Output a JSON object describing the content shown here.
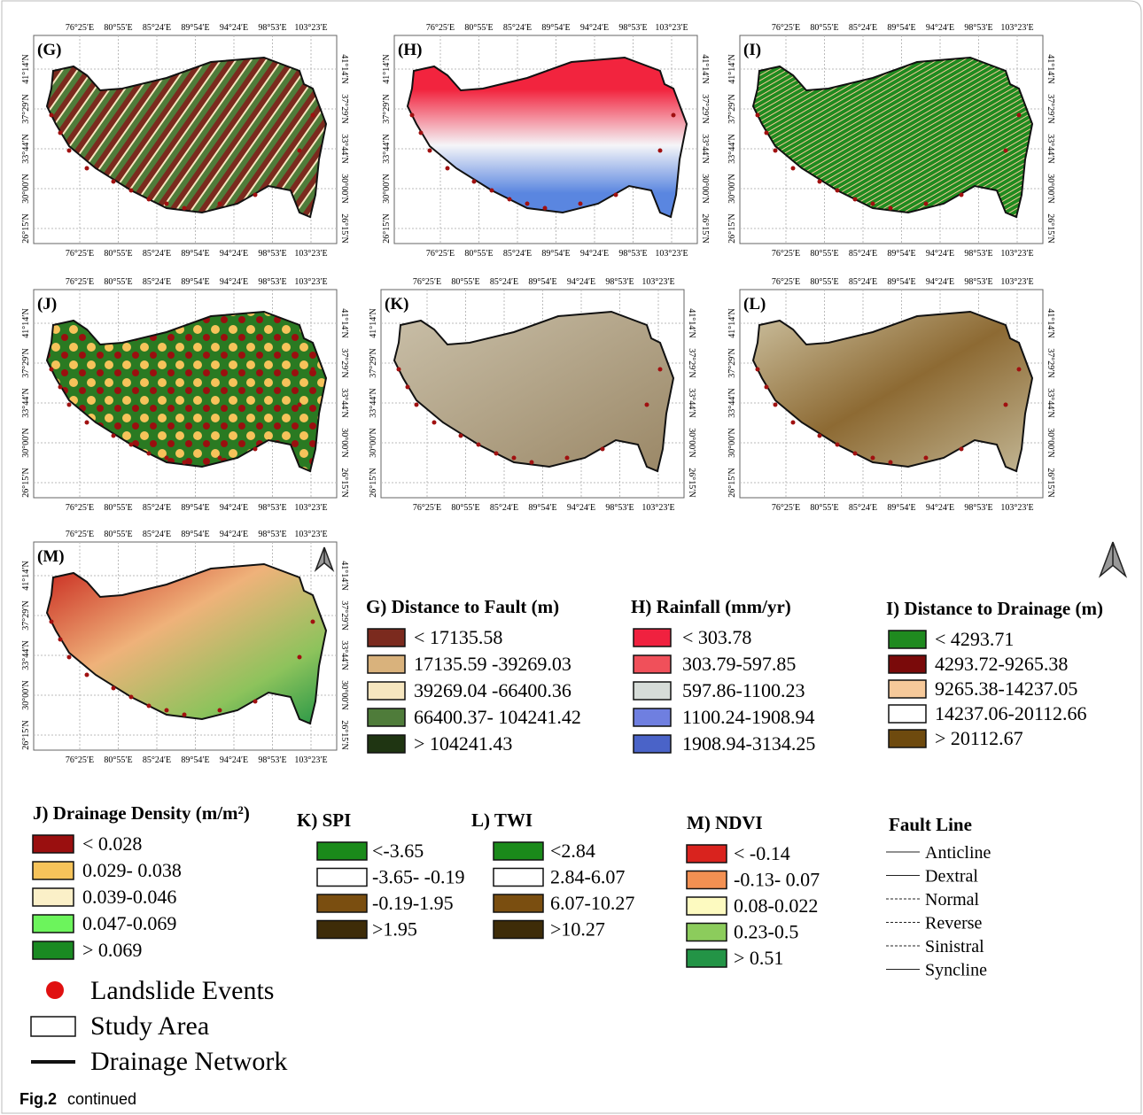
{
  "lon_labels": [
    "76°25′E",
    "80°55′E",
    "85°24′E",
    "89°54′E",
    "94°24′E",
    "98°53′E",
    "103°23′E"
  ],
  "lat_labels": [
    "41°14′N",
    "37°29′N",
    "33°44′N",
    "30°00′N",
    "26°15′N"
  ],
  "panels": [
    {
      "label": "(G)"
    },
    {
      "label": "(H)"
    },
    {
      "label": "(I)"
    },
    {
      "label": "(J)"
    },
    {
      "label": "(K)"
    },
    {
      "label": "(L)"
    },
    {
      "label": "(M)"
    }
  ],
  "legends": [
    {
      "title": "G) Distance to Fault (m)",
      "items": [
        {
          "label": "< 17135.58",
          "color": "#7b2a1e"
        },
        {
          "label": "17135.59 -39269.03",
          "color": "#d9b27c"
        },
        {
          "label": "39269.04 -66400.36",
          "color": "#f6e6bf"
        },
        {
          "label": "66400.37- 104241.42",
          "color": "#4f7c3a"
        },
        {
          "label": "> 104241.43",
          "color": "#1f3512"
        }
      ]
    },
    {
      "title": "H) Rainfall (mm/yr)",
      "items": [
        {
          "label": "< 303.78",
          "color": "#f0213f"
        },
        {
          "label": "303.79-597.85",
          "color": "#f0505a"
        },
        {
          "label": "597.86-1100.23",
          "color": "#d6dcd8"
        },
        {
          "label": "1100.24-1908.94",
          "color": "#6f7fe0"
        },
        {
          "label": "1908.94-3134.25",
          "color": "#4a63c8"
        }
      ]
    },
    {
      "title": "I) Distance to Drainage (m)",
      "items": [
        {
          "label": "< 4293.71",
          "color": "#1f8a1f"
        },
        {
          "label": "4293.72-9265.38",
          "color": "#7a0a0a"
        },
        {
          "label": "9265.38-14237.05",
          "color": "#f6c99a"
        },
        {
          "label": "14237.06-20112.66",
          "color": "#ffffff"
        },
        {
          "label": "> 20112.67",
          "color": "#6e4a0e"
        }
      ]
    },
    {
      "title": "J) Drainage Density (m/m²)",
      "items": [
        {
          "label": "< 0.028",
          "color": "#9a0f0f"
        },
        {
          "label": "0.029- 0.038",
          "color": "#f6c35a"
        },
        {
          "label": "0.039-0.046",
          "color": "#fbf0c8"
        },
        {
          "label": "0.047-0.069",
          "color": "#6cf45c"
        },
        {
          "label": "> 0.069",
          "color": "#1a8a22"
        }
      ]
    },
    {
      "title": "K) SPI",
      "items": [
        {
          "label": "<-3.65",
          "color": "#1a8a1a"
        },
        {
          "label": "-3.65- -0.19",
          "color": "#ffffff"
        },
        {
          "label": "-0.19-1.95",
          "color": "#7a4e10"
        },
        {
          "label": ">1.95",
          "color": "#3e2c08"
        }
      ]
    },
    {
      "title": "L) TWI",
      "items": [
        {
          "label": "<2.84",
          "color": "#1a8a1a"
        },
        {
          "label": "2.84-6.07",
          "color": "#ffffff"
        },
        {
          "label": "6.07-10.27",
          "color": "#7a4e10"
        },
        {
          "label": ">10.27",
          "color": "#3e2c08"
        }
      ]
    },
    {
      "title": "M) NDVI",
      "items": [
        {
          "label": "< -0.14",
          "color": "#d9231e"
        },
        {
          "label": "-0.13- 0.07",
          "color": "#f39052"
        },
        {
          "label": "0.08-0.022",
          "color": "#fdfac0"
        },
        {
          "label": "0.23-0.5",
          "color": "#8ccc5c"
        },
        {
          "label": "> 0.51",
          "color": "#239446"
        }
      ]
    }
  ],
  "fault_line": {
    "title": "Fault Line",
    "items": [
      "Anticline",
      "Dextral",
      "Normal",
      "Reverse",
      "Sinistral",
      "Syncline"
    ]
  },
  "study_legend": {
    "items": [
      "Landslide Events",
      "Study Area",
      "Drainage Network"
    ]
  },
  "caption": {
    "label": "Fig.2",
    "text": "continued"
  }
}
